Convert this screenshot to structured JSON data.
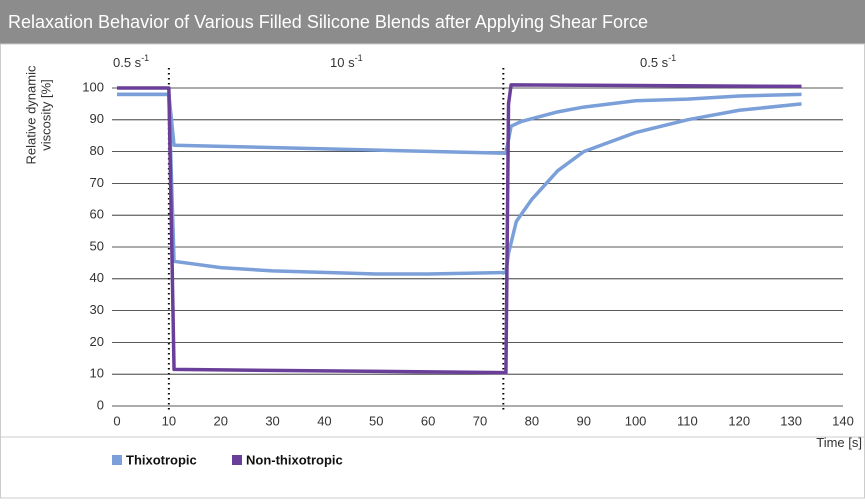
{
  "chart_data": {
    "type": "line",
    "title": "Relaxation Behavior of Various Filled Silicone Blends after Applying Shear Force",
    "ylabel": [
      "Relative dynamic",
      "viscosity [%]"
    ],
    "xlabel": "Time [s]",
    "annotations": [
      {
        "text": "0.5 s",
        "sup": "-1"
      },
      {
        "text": "10 s",
        "sup": "-1"
      },
      {
        "text": "0.5 s",
        "sup": "-1"
      }
    ],
    "vlines": [
      10,
      74.5
    ],
    "xlim": [
      0,
      140
    ],
    "xticks": [
      0,
      10,
      20,
      30,
      40,
      50,
      60,
      70,
      80,
      90,
      100,
      110,
      120,
      130,
      140
    ],
    "ylim": [
      0,
      100
    ],
    "yticks": [
      0,
      10,
      20,
      30,
      40,
      50,
      60,
      70,
      80,
      90,
      100
    ],
    "grid": true,
    "series": [
      {
        "name": "Thixotropic",
        "color": "#7b9fd8",
        "lines": [
          {
            "x": [
              0,
              10,
              11,
              75,
              76,
              78,
              85,
              90,
              100,
              110,
              120,
              132
            ],
            "values": [
              98,
              98,
              82,
              79.5,
              88,
              89.5,
              92.5,
              94,
              96,
              96.5,
              97.5,
              98
            ]
          },
          {
            "x": [
              0,
              10,
              11,
              20,
              30,
              50,
              60,
              75,
              75.5,
              77,
              80,
              85,
              90,
              100,
              110,
              120,
              132
            ],
            "values": [
              98,
              98,
              45.5,
              43.5,
              42.5,
              41.5,
              41.5,
              42,
              48,
              58,
              65,
              74,
              80,
              86,
              90,
              93,
              95
            ]
          }
        ]
      },
      {
        "name": "Non-thixotropic",
        "color": "#6a3f99",
        "lines": [
          {
            "x": [
              0,
              10,
              11,
              75,
              75.5,
              76,
              132
            ],
            "values": [
              100,
              100,
              11.5,
              10.5,
              95,
              101,
              100.5
            ]
          }
        ]
      }
    ]
  }
}
